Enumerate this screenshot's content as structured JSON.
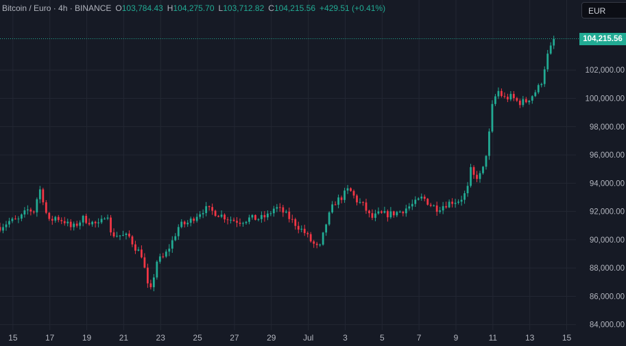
{
  "legend": {
    "symbol": "Bitcoin / Euro · 4h · BINANCE",
    "open_label": "O",
    "open": "103,784.43",
    "high_label": "H",
    "high": "104,275.70",
    "low_label": "L",
    "low": "103,712.82",
    "close_label": "C",
    "close": "104,215.56",
    "change": "+429.51 (+0.41%)"
  },
  "currency_button": "EUR",
  "last_price_label": "104,215.56",
  "colors": {
    "up": "#22ab94",
    "down": "#f23645",
    "background": "#161a25",
    "grid": "#232733",
    "text": "#b2b5be"
  },
  "chart_data": {
    "type": "candlestick",
    "title": "Bitcoin / Euro · 4h · BINANCE",
    "ylim": [
      83600,
      105500
    ],
    "xlim": [
      14.3,
      45.5
    ],
    "yticks": [
      {
        "value": 84000,
        "label": "84,000.00"
      },
      {
        "value": 86000,
        "label": "86,000.00"
      },
      {
        "value": 88000,
        "label": "88,000.00"
      },
      {
        "value": 90000,
        "label": "90,000.00"
      },
      {
        "value": 92000,
        "label": "92,000.00"
      },
      {
        "value": 94000,
        "label": "94,000.00"
      },
      {
        "value": 96000,
        "label": "96,000.00"
      },
      {
        "value": 98000,
        "label": "98,000.00"
      },
      {
        "value": 100000,
        "label": "100,000.00"
      },
      {
        "value": 102000,
        "label": "102,000.00"
      }
    ],
    "xticks": [
      {
        "day": 15,
        "label": "15"
      },
      {
        "day": 17,
        "label": "17"
      },
      {
        "day": 19,
        "label": "19"
      },
      {
        "day": 21,
        "label": "21"
      },
      {
        "day": 23,
        "label": "23"
      },
      {
        "day": 25,
        "label": "25"
      },
      {
        "day": 27,
        "label": "27"
      },
      {
        "day": 29,
        "label": "29"
      },
      {
        "day": 31,
        "label": "Jul"
      },
      {
        "day": 33,
        "label": "3"
      },
      {
        "day": 35,
        "label": "5"
      },
      {
        "day": 37,
        "label": "7"
      },
      {
        "day": 39,
        "label": "9"
      },
      {
        "day": 41,
        "label": "11"
      },
      {
        "day": 43,
        "label": "13"
      },
      {
        "day": 45,
        "label": "15"
      }
    ],
    "last_price": 104215.56,
    "anchors": [
      [
        14.3,
        90900
      ],
      [
        14.8,
        91300
      ],
      [
        15.3,
        91400
      ],
      [
        15.8,
        92100
      ],
      [
        16.2,
        92000
      ],
      [
        16.4,
        93800
      ],
      [
        16.7,
        92600
      ],
      [
        16.9,
        91200
      ],
      [
        17.3,
        91600
      ],
      [
        17.8,
        91300
      ],
      [
        18.2,
        90800
      ],
      [
        18.8,
        91500
      ],
      [
        19.3,
        91200
      ],
      [
        19.7,
        91000
      ],
      [
        20.1,
        92100
      ],
      [
        20.3,
        90400
      ],
      [
        20.8,
        90300
      ],
      [
        21.3,
        90200
      ],
      [
        21.6,
        89500
      ],
      [
        22.0,
        88900
      ],
      [
        22.4,
        86000
      ],
      [
        22.8,
        88500
      ],
      [
        23.2,
        88800
      ],
      [
        23.6,
        89800
      ],
      [
        24.0,
        91000
      ],
      [
        24.5,
        91200
      ],
      [
        24.9,
        91700
      ],
      [
        25.4,
        92200
      ],
      [
        26.0,
        91900
      ],
      [
        26.5,
        91600
      ],
      [
        26.9,
        91400
      ],
      [
        27.3,
        91300
      ],
      [
        27.8,
        91500
      ],
      [
        28.4,
        91500
      ],
      [
        28.8,
        91700
      ],
      [
        29.2,
        92300
      ],
      [
        29.6,
        92000
      ],
      [
        30.0,
        91500
      ],
      [
        30.4,
        91000
      ],
      [
        30.8,
        90500
      ],
      [
        31.2,
        89800
      ],
      [
        31.6,
        89300
      ],
      [
        32.0,
        91300
      ],
      [
        32.4,
        92600
      ],
      [
        32.8,
        93000
      ],
      [
        33.2,
        93600
      ],
      [
        33.6,
        92800
      ],
      [
        34.0,
        92400
      ],
      [
        34.4,
        91500
      ],
      [
        34.8,
        91800
      ],
      [
        35.4,
        91800
      ],
      [
        36.0,
        92000
      ],
      [
        36.4,
        92300
      ],
      [
        36.8,
        92600
      ],
      [
        37.2,
        93000
      ],
      [
        37.6,
        92500
      ],
      [
        38.0,
        92200
      ],
      [
        38.4,
        92500
      ],
      [
        38.8,
        92700
      ],
      [
        39.2,
        92800
      ],
      [
        39.6,
        93400
      ],
      [
        39.8,
        94900
      ],
      [
        40.0,
        94400
      ],
      [
        40.4,
        94600
      ],
      [
        40.6,
        95800
      ],
      [
        40.8,
        97500
      ],
      [
        41.0,
        99800
      ],
      [
        41.3,
        100500
      ],
      [
        41.6,
        100000
      ],
      [
        42.0,
        100100
      ],
      [
        42.4,
        99700
      ],
      [
        42.8,
        99800
      ],
      [
        43.2,
        100300
      ],
      [
        43.6,
        101000
      ],
      [
        43.9,
        102800
      ],
      [
        44.1,
        103500
      ],
      [
        44.3,
        103800
      ],
      [
        44.45,
        104215.56
      ]
    ],
    "series_note": "4h OHLC candles for BTC/EUR from about Jun 14 to Jul 14"
  }
}
